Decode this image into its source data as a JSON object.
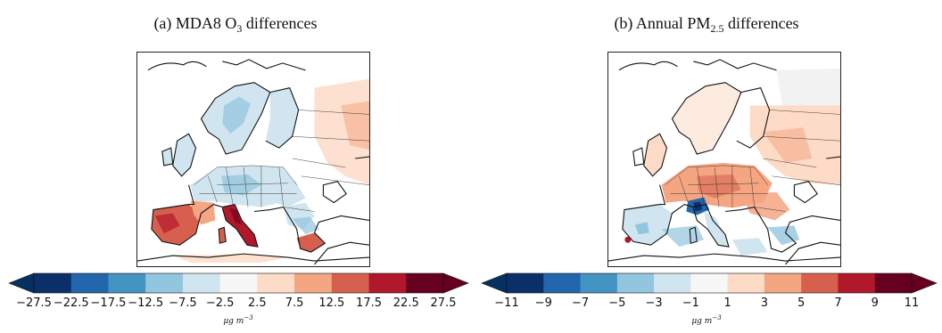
{
  "figure": {
    "panels": [
      {
        "id": "a",
        "title_main": "(a) MDA8 O",
        "title_sub": "3",
        "title_rest": " differences",
        "colorbar": {
          "ticks": [
            "−27.5",
            "−22.5",
            "−17.5",
            "−12.5",
            "−7.5",
            "−2.5",
            "2.5",
            "7.5",
            "12.5",
            "17.5",
            "22.5",
            "27.5"
          ],
          "colors": [
            "#0b2f68",
            "#2266ac",
            "#4393c3",
            "#92c5de",
            "#d1e5f0",
            "#f7f7f7",
            "#fddbc7",
            "#f4a582",
            "#d6604d",
            "#b2182b",
            "#67001f"
          ],
          "under_color": "#053061",
          "over_color": "#67001f",
          "unit_main": "μg m",
          "unit_sup": "−3"
        }
      },
      {
        "id": "b",
        "title_main": "(b) Annual PM",
        "title_sub": "2.5",
        "title_rest": " differences",
        "colorbar": {
          "ticks": [
            "−11",
            "−9",
            "−7",
            "−5",
            "−3",
            "−1",
            "1",
            "3",
            "5",
            "7",
            "9",
            "11"
          ],
          "colors": [
            "#0b2f68",
            "#2266ac",
            "#4393c3",
            "#92c5de",
            "#d1e5f0",
            "#f7f7f7",
            "#fddbc7",
            "#f4a582",
            "#d6604d",
            "#b2182b",
            "#67001f"
          ],
          "under_color": "#053061",
          "over_color": "#67001f",
          "unit_main": "μg m",
          "unit_sup": "−3"
        }
      }
    ]
  }
}
